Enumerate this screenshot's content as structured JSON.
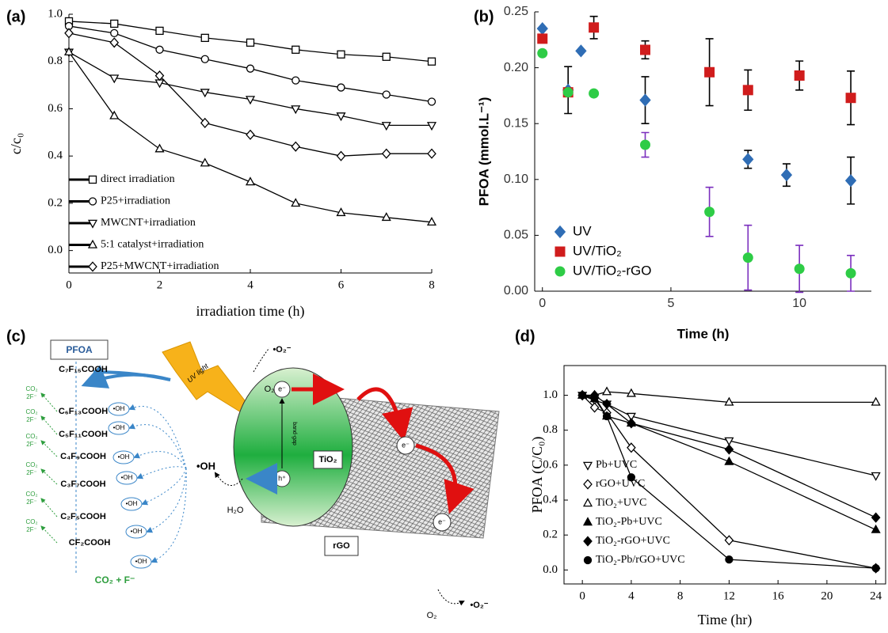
{
  "chart_data": [
    {
      "type": "line",
      "panel_label": "(a)",
      "xlabel": "irradiation time (h)",
      "ylabel": "c/c₀",
      "x": [
        0,
        1,
        2,
        3,
        4,
        5,
        6,
        7,
        8
      ],
      "xlim": [
        0,
        8
      ],
      "xticks": [
        0,
        2,
        4,
        6,
        8
      ],
      "ylim": [
        -0.095,
        1.0
      ],
      "yticks": [
        {
          "value": 0,
          "label": "0.0"
        },
        0.2,
        0.4,
        0.6,
        0.8,
        {
          "value": 1,
          "label": "1.0"
        }
      ],
      "legend": "lower left",
      "series": [
        {
          "name": "direct irradiation",
          "color": "#000000",
          "marker": "square",
          "filled": false,
          "values": [
            0.97,
            0.96,
            0.93,
            0.9,
            0.88,
            0.85,
            0.83,
            0.82,
            0.8
          ]
        },
        {
          "name": "P25+irradiation",
          "color": "#000000",
          "marker": "circle",
          "filled": false,
          "values": [
            0.95,
            0.92,
            0.85,
            0.81,
            0.77,
            0.72,
            0.69,
            0.66,
            0.63
          ]
        },
        {
          "name": "MWCNT+irradiation",
          "color": "#000000",
          "marker": "triangle-down",
          "filled": false,
          "values": [
            0.84,
            0.73,
            0.71,
            0.67,
            0.64,
            0.6,
            0.57,
            0.53,
            0.53
          ]
        },
        {
          "name": "5:1 catalyst+irradiation",
          "color": "#000000",
          "marker": "triangle-up",
          "filled": false,
          "values": [
            0.84,
            0.57,
            0.43,
            0.37,
            0.29,
            0.2,
            0.16,
            0.14,
            0.12
          ]
        },
        {
          "name": "P25+MWCNT+irradiation",
          "color": "#000000",
          "marker": "diamond",
          "filled": false,
          "values": [
            0.92,
            0.88,
            0.74,
            0.54,
            0.49,
            0.44,
            0.4,
            0.41,
            0.41
          ]
        }
      ]
    },
    {
      "type": "scatter",
      "panel_label": "(b)",
      "xlabel": "Time (h)",
      "ylabel": "PFOA (mmol.L⁻¹)",
      "xlim": [
        -0.3,
        12.8
      ],
      "xticks": [
        0,
        5,
        10
      ],
      "ylim": [
        0,
        0.25
      ],
      "yticks": [
        {
          "value": 0,
          "label": "0.00"
        },
        0.05,
        {
          "value": 0.1,
          "label": "0.10"
        },
        0.15,
        {
          "value": 0.2,
          "label": "0.20"
        },
        0.25
      ],
      "legend": "lower left",
      "series": [
        {
          "name": "UV",
          "color": "#2f6db5",
          "marker": "diamond",
          "filled": true,
          "error_color": "#000000",
          "x": [
            0,
            1,
            1.5,
            4,
            8,
            9.5,
            12
          ],
          "values": [
            0.235,
            0.18,
            0.215,
            0.171,
            0.118,
            0.104,
            0.099
          ],
          "errors": [
            null,
            0.021,
            null,
            0.021,
            0.008,
            0.01,
            0.021
          ]
        },
        {
          "name": "UV/TiO₂",
          "color": "#d01c1c",
          "marker": "square",
          "filled": true,
          "error_color": "#000000",
          "x": [
            0,
            1,
            2,
            4,
            6.5,
            8,
            10,
            12
          ],
          "values": [
            0.226,
            0.178,
            0.236,
            0.216,
            0.196,
            0.18,
            0.193,
            0.173
          ],
          "errors": [
            null,
            null,
            0.01,
            0.008,
            0.03,
            0.018,
            0.013,
            0.024
          ]
        },
        {
          "name": "UV/TiO₂-rGO",
          "color": "#2ecc46",
          "marker": "circle",
          "filled": true,
          "error_color": "#7b2fbe",
          "x": [
            0,
            1,
            2,
            4,
            6.5,
            8,
            10,
            12
          ],
          "values": [
            0.213,
            0.178,
            0.177,
            0.131,
            0.071,
            0.03,
            0.02,
            0.016
          ],
          "errors": [
            null,
            null,
            null,
            0.011,
            0.022,
            0.029,
            0.021,
            0.016
          ]
        }
      ]
    },
    {
      "type": "line",
      "panel_label": "(d)",
      "xlabel": "Time (hr)",
      "ylabel": "PFOA (C/C₀)",
      "x": [
        0,
        1,
        2,
        4,
        12,
        24
      ],
      "xlim": [
        -1.5,
        24.8
      ],
      "xticks": [
        0,
        4,
        8,
        12,
        16,
        20,
        24
      ],
      "ylim": [
        -0.08,
        1.17
      ],
      "yticks": [
        {
          "value": 0,
          "label": "0.0"
        },
        0.2,
        0.4,
        0.6,
        0.8,
        {
          "value": 1,
          "label": "1.0"
        }
      ],
      "legend": "lower left",
      "series": [
        {
          "name": "Pb+UVC",
          "color": "#000000",
          "marker": "triangle-down",
          "filled": false,
          "values": [
            1.0,
            0.97,
            0.95,
            0.88,
            0.74,
            0.54
          ]
        },
        {
          "name": "rGO+UVC",
          "color": "#000000",
          "marker": "diamond",
          "filled": false,
          "values": [
            1.0,
            0.93,
            0.9,
            0.7,
            0.17,
            0.01
          ]
        },
        {
          "name": "TiO₂+UVC",
          "color": "#000000",
          "marker": "triangle-up",
          "filled": false,
          "values": [
            1.0,
            1.0,
            1.02,
            1.01,
            0.96,
            0.96
          ]
        },
        {
          "name": "TiO₂-Pb+UVC",
          "color": "#000000",
          "marker": "triangle-up",
          "filled": true,
          "values": [
            1.0,
            0.98,
            0.88,
            0.84,
            0.62,
            0.23
          ]
        },
        {
          "name": "TiO₂-rGO+UVC",
          "color": "#000000",
          "marker": "diamond",
          "filled": true,
          "values": [
            1.0,
            1.0,
            0.95,
            0.84,
            0.69,
            0.3
          ]
        },
        {
          "name": "TiO₂-Pb/rGO+UVC",
          "color": "#000000",
          "marker": "circle",
          "filled": true,
          "values": [
            1.0,
            0.99,
            0.88,
            0.53,
            0.06,
            0.01
          ]
        }
      ]
    }
  ],
  "diagram": {
    "panel_label": "(c)",
    "box": "PFOA",
    "chain": [
      "C₇F₁₅COOH",
      "C₆F₁₃COOH",
      "C₅F₁₁COOH",
      "C₄F₉COOH",
      "C₃F₇COOH",
      "C₂F₅COOH",
      "CF₂COOH"
    ],
    "final": "CO₂ + F⁻",
    "byproducts": [
      {
        "co2": "CO₂",
        "f": "2F⁻"
      },
      {
        "co2": "CO₂",
        "f": "2F⁻"
      },
      {
        "co2": "CO₂",
        "f": "2F⁻"
      },
      {
        "co2": "CO₂",
        "f": "2F⁻"
      },
      {
        "co2": "CO₂",
        "f": "2F⁻"
      },
      {
        "co2": "CO₂",
        "f": "2F⁻"
      }
    ],
    "oh_first": "•OH",
    "oh_circles": [
      "•OH",
      "•OH",
      "•OH",
      "•OH",
      "•OH",
      "•OH",
      "•OH"
    ],
    "radical": "•OH",
    "uv": "UV light",
    "o2_top": "O₂",
    "superoxide_top": "•O₂⁻",
    "electrons": [
      "e⁻",
      "e⁻",
      "e⁻"
    ],
    "hole": "h⁺",
    "catalyst": "TiO₂",
    "band_gap": "band-gap",
    "water": "H₂O",
    "support": "rGO",
    "o2_bottom": "O₂",
    "superoxide_bottom": "•O₂⁻"
  }
}
